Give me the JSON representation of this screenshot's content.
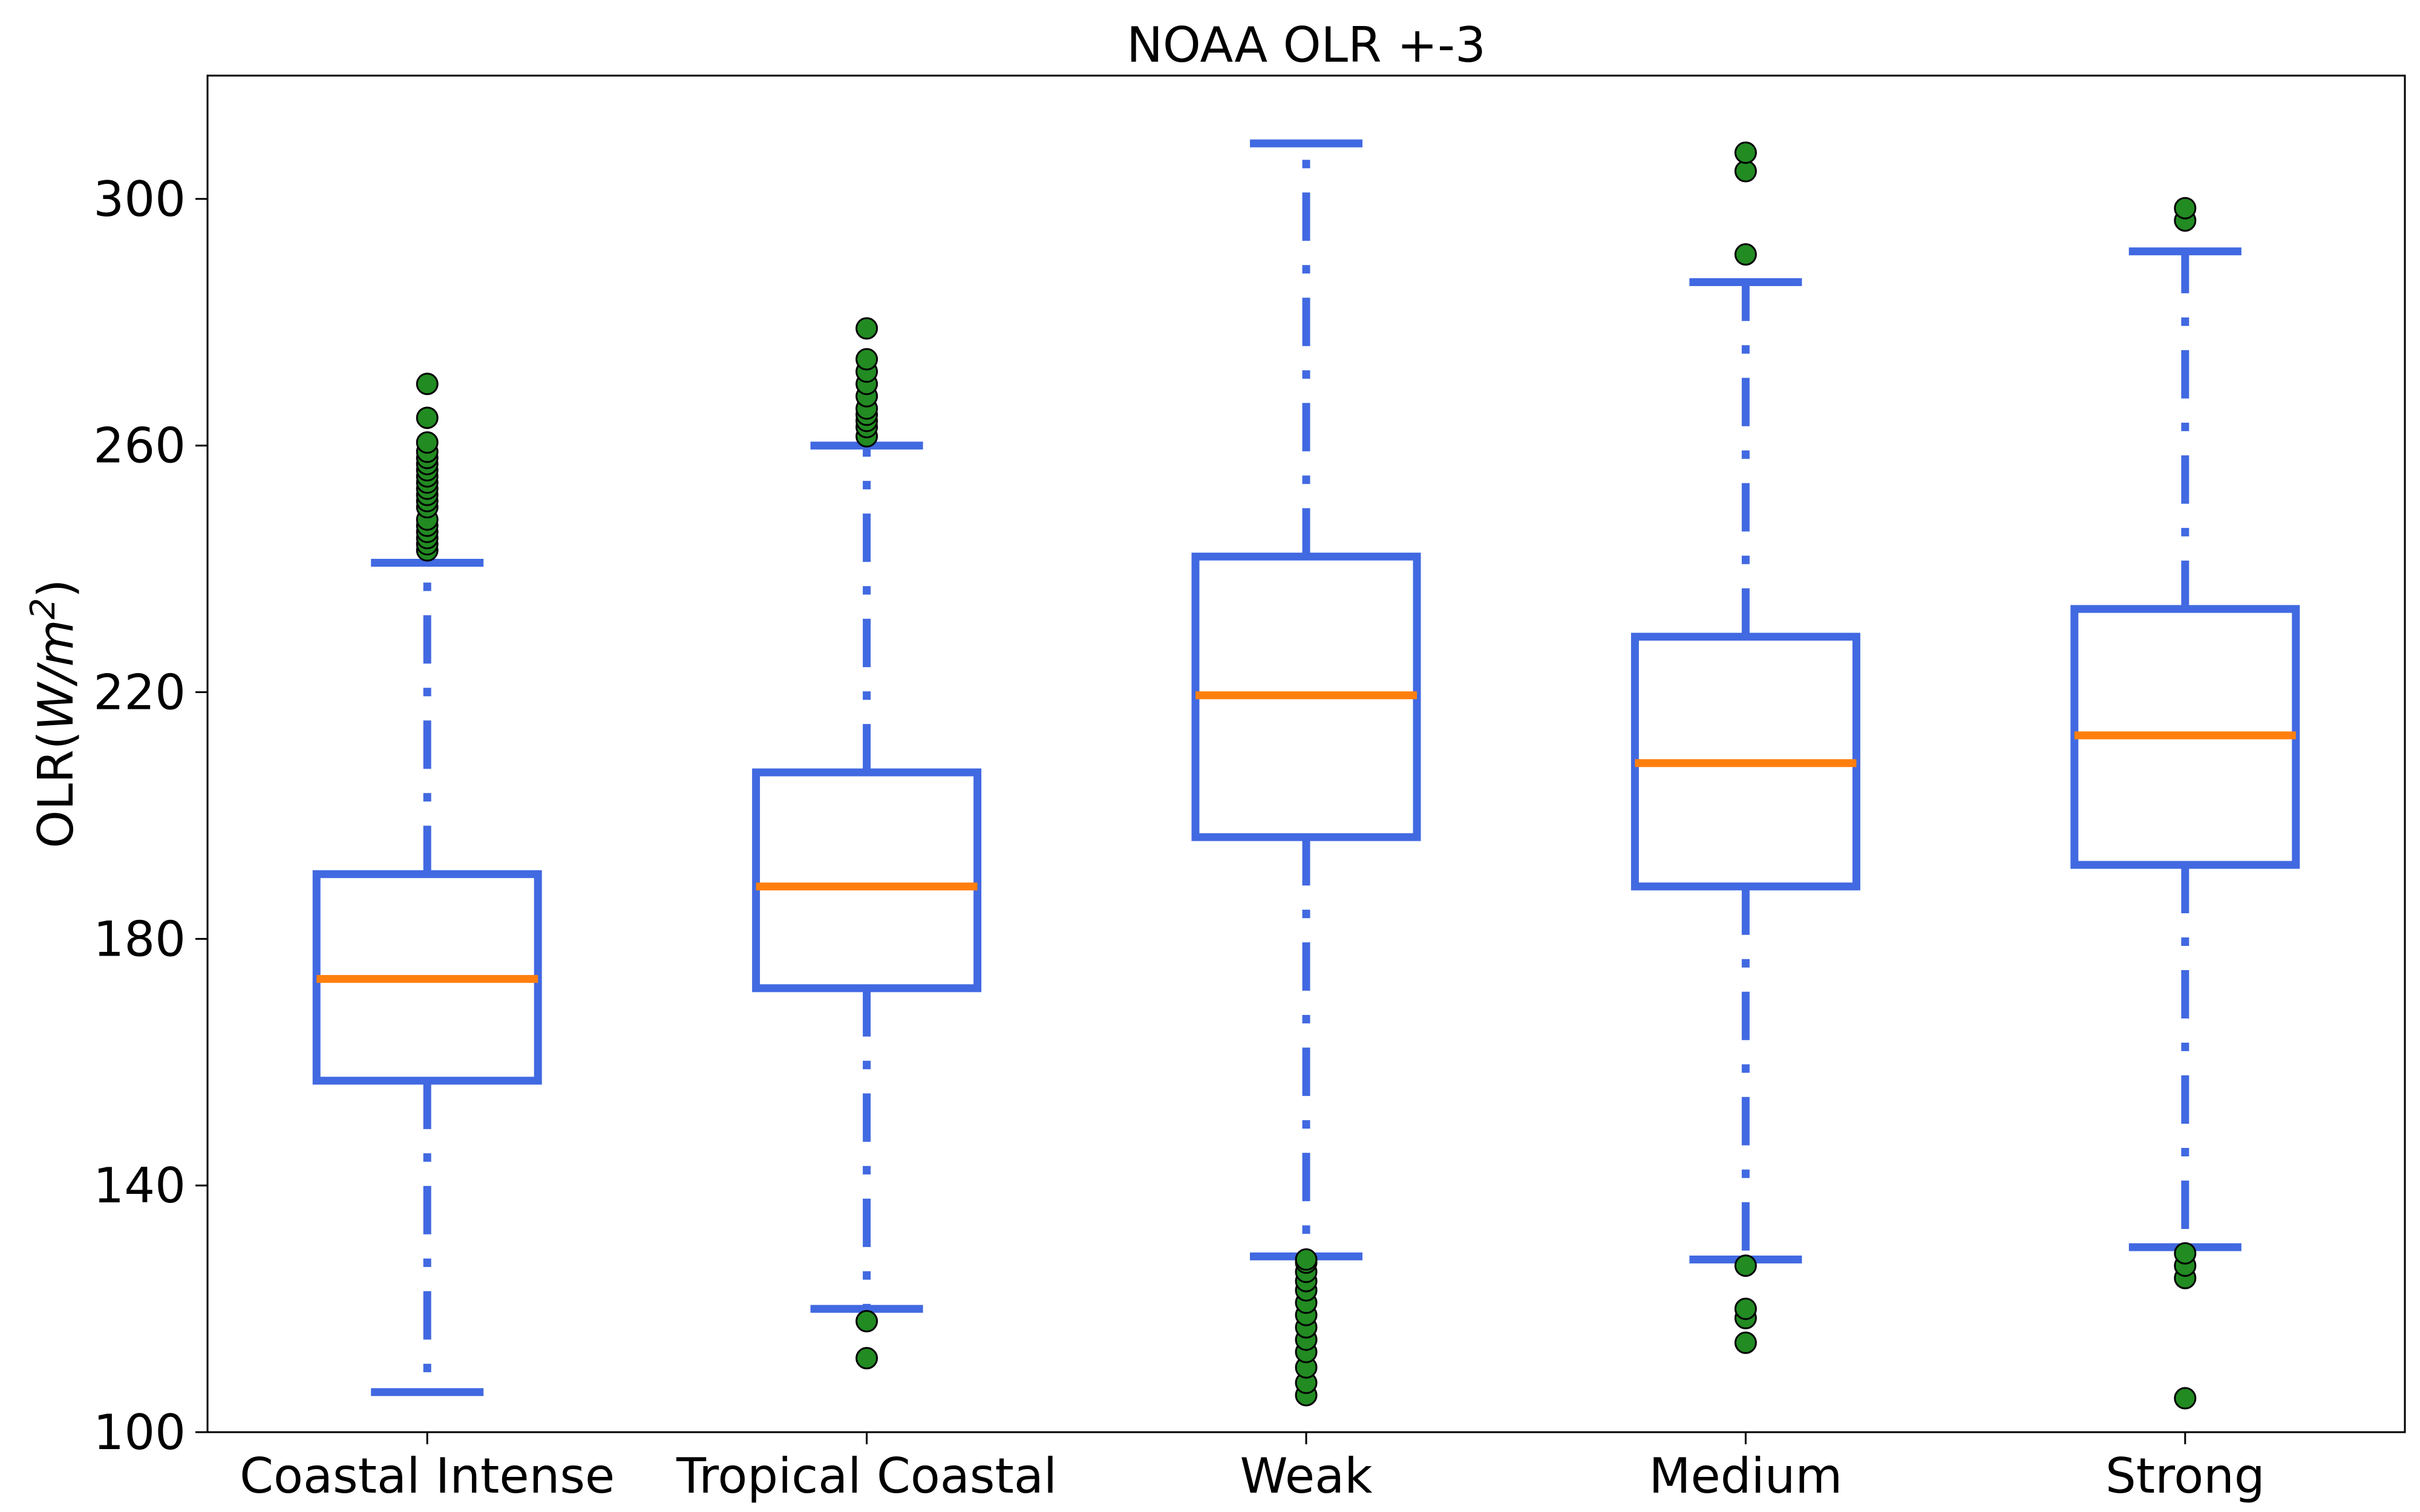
{
  "chart_data": {
    "type": "box",
    "title": "NOAA OLR +-3",
    "xlabel": "",
    "ylabel_prefix": "OLR(",
    "ylabel_unit_base": "W/m",
    "ylabel_unit_exp": "2",
    "ylabel_suffix": ")",
    "ylim": [
      100,
      320
    ],
    "yticks": [
      100,
      140,
      180,
      220,
      260,
      300
    ],
    "grid": false,
    "colors": {
      "box": "#4169e1",
      "median": "#ff7f0e",
      "outlier": "#228b22",
      "outlier_edge": "#000000"
    },
    "categories": [
      "Coastal Intense",
      "Tropical Coastal",
      "Weak",
      "Medium",
      "Strong"
    ],
    "boxes": [
      {
        "whisker_low": 106.5,
        "q1": 157,
        "median": 173.5,
        "q3": 190.5,
        "whisker_high": 241,
        "outliers": [
          243,
          244,
          245,
          246,
          247,
          248,
          250,
          251,
          252,
          253,
          254,
          255,
          256,
          257,
          258,
          259,
          260.5,
          264.5,
          270
        ]
      },
      {
        "whisker_low": 120,
        "q1": 172,
        "median": 188.5,
        "q3": 207,
        "whisker_high": 260,
        "outliers": [
          112,
          118,
          261.5,
          263,
          264,
          265,
          266,
          268,
          270,
          272,
          274,
          279
        ]
      },
      {
        "whisker_low": 128.5,
        "q1": 196.5,
        "median": 219.5,
        "q3": 242,
        "whisker_high": 309,
        "outliers": [
          106,
          108,
          110.5,
          113,
          115,
          117,
          119,
          121,
          123,
          124.5,
          126,
          127.5,
          128
        ]
      },
      {
        "whisker_low": 128,
        "q1": 188.5,
        "median": 208.5,
        "q3": 229,
        "whisker_high": 286.5,
        "outliers": [
          114.5,
          118.5,
          120,
          127,
          291,
          304.5,
          307.5
        ]
      },
      {
        "whisker_low": 130,
        "q1": 192,
        "median": 213,
        "q3": 233.5,
        "whisker_high": 291.5,
        "outliers": [
          105.5,
          125,
          127,
          129,
          296.5,
          298.5
        ]
      }
    ]
  }
}
